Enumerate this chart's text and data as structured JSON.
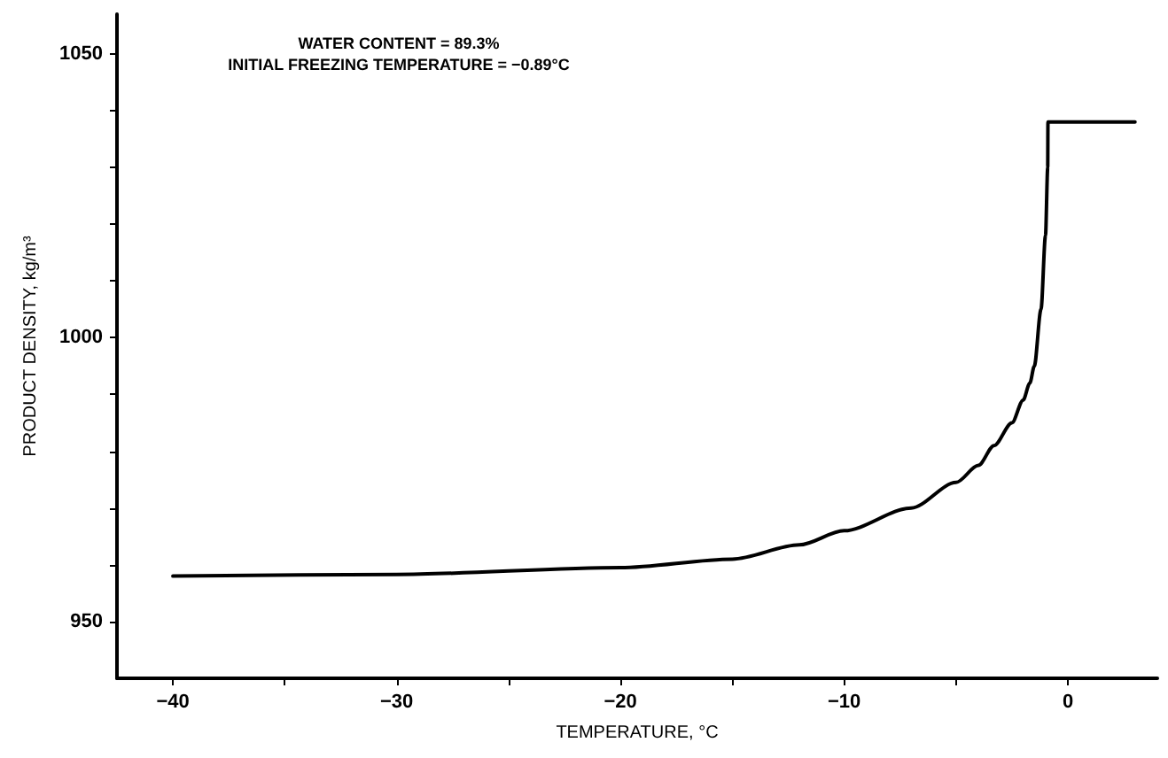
{
  "chart_data": {
    "type": "line",
    "xlabel": "TEMPERATURE, °C",
    "ylabel": "PRODUCT DENSITY, kg/m³",
    "annotations": [
      "WATER CONTENT = 89.3%",
      "INITIAL FREEZING TEMPERATURE = −0.89°C"
    ],
    "x": [
      -40,
      -30,
      -20,
      -15,
      -12,
      -10,
      -7,
      -5,
      -4,
      -3.3,
      -2.5,
      -2,
      -1.7,
      -1.5,
      -1.2,
      -1,
      -0.9,
      -0.89,
      3
    ],
    "series": [
      {
        "color": "#000000",
        "values": [
          958,
          958.3,
          959.5,
          961,
          963.5,
          966,
          970,
          974.5,
          977.5,
          981,
          985,
          989,
          992,
          995,
          1005,
          1018,
          1030,
          1038,
          1038
        ]
      }
    ],
    "xlim": [
      -42.5,
      4
    ],
    "xticks": [
      -40,
      {
        "value": -35,
        "label": null
      },
      -30,
      {
        "value": -25,
        "label": null
      },
      -20,
      {
        "value": -15,
        "label": null
      },
      -10,
      {
        "value": -5,
        "label": null
      },
      0
    ],
    "ylim": [
      940,
      1057
    ],
    "yticks": [
      950,
      {
        "value": 960,
        "label": null
      },
      {
        "value": 970,
        "label": null
      },
      {
        "value": 980,
        "label": null
      },
      {
        "value": 990,
        "label": null
      },
      1000,
      {
        "value": 1010,
        "label": null
      },
      {
        "value": 1020,
        "label": null
      },
      {
        "value": 1030,
        "label": null
      },
      {
        "value": 1040,
        "label": null
      },
      1050
    ],
    "grid": false,
    "marker": "none",
    "line_style": "solid"
  }
}
